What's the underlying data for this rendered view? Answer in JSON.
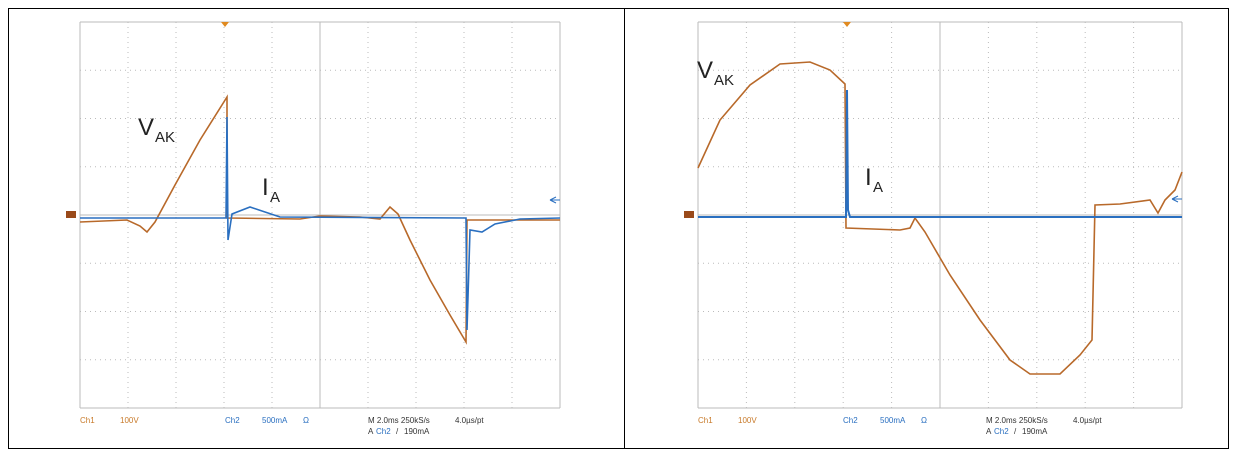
{
  "panels": [
    {
      "labels": {
        "v_main": "V",
        "v_sub": "AK",
        "i_main": "I",
        "i_sub": "A"
      },
      "readout": {
        "ch1": "Ch1",
        "ch1_scale": "100V",
        "ch2": "Ch2",
        "ch2_scale": "500mA",
        "ohm": "Ω",
        "timebase": "M 2.0ms 250kS/s",
        "rate": "4.0µs/pt",
        "trigger_a": "A",
        "trigger_src": "Ch2",
        "trigger_slope": "/",
        "trigger_level": "190mA"
      }
    },
    {
      "labels": {
        "v_main": "V",
        "v_sub": "AK",
        "i_main": "I",
        "i_sub": "A"
      },
      "readout": {
        "ch1": "Ch1",
        "ch1_scale": "100V",
        "ch2": "Ch2",
        "ch2_scale": "500mA",
        "ohm": "Ω",
        "timebase": "M 2.0ms 250kS/s",
        "rate": "4.0µs/pt",
        "trigger_a": "A",
        "trigger_src": "Ch2",
        "trigger_slope": "/",
        "trigger_level": "190mA"
      }
    }
  ]
}
